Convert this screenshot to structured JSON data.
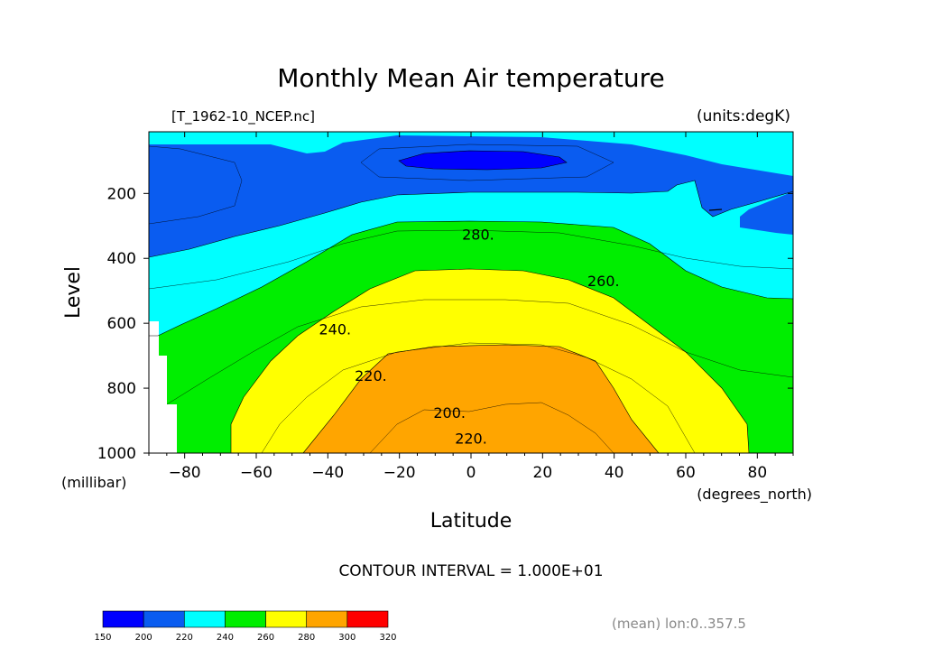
{
  "chart_data": {
    "type": "contour",
    "title": "Monthly Mean Air temperature",
    "dataset_label": "[T_1962-10_NCEP.nc]",
    "units_label": "(units:degK)",
    "xlabel": "Latitude",
    "xunits": "(degrees_north)",
    "ylabel": "Level",
    "yunits": "(millibar)",
    "xlim": [
      -90,
      90
    ],
    "ylim": [
      1000,
      10
    ],
    "y_inverted": true,
    "x_ticks": [
      -80,
      -60,
      -40,
      -20,
      0,
      20,
      40,
      60,
      80
    ],
    "x_tick_labels": [
      "−80",
      "−60",
      "−40",
      "−20",
      "0",
      "20",
      "40",
      "60",
      "80"
    ],
    "y_ticks": [
      1000,
      800,
      600,
      400,
      200
    ],
    "y_tick_labels": [
      "1000",
      "800",
      "600",
      "400",
      "200"
    ],
    "contour_interval_label": "CONTOUR INTERVAL = 1.000E+01",
    "mean_note": "(mean) lon:0..357.5",
    "contour_labels": [
      {
        "text": "220.",
        "x": 0,
        "y": 30
      },
      {
        "text": "200.",
        "x": -6,
        "y": 110
      },
      {
        "text": "220.",
        "x": -28,
        "y": 225
      },
      {
        "text": "240.",
        "x": -38,
        "y": 370
      },
      {
        "text": "260.",
        "x": 37,
        "y": 520
      },
      {
        "text": "280.",
        "x": 2,
        "y": 665
      }
    ],
    "colorbar": {
      "levels": [
        150,
        200,
        220,
        240,
        260,
        280,
        300,
        320
      ],
      "labels": [
        "150",
        "200",
        "220",
        "240",
        "260",
        "280",
        "300",
        "320"
      ],
      "colors": [
        "#0000ff",
        "#0a5cf0",
        "#00ffff",
        "#00ee00",
        "#ffff00",
        "#ffa500",
        "#ff0000"
      ]
    },
    "isotherms": [
      {
        "level": 200,
        "points": [
          [
            -20,
            100
          ],
          [
            -10,
            80
          ],
          [
            0,
            80
          ],
          [
            15,
            85
          ],
          [
            25,
            100
          ],
          [
            15,
            115
          ],
          [
            0,
            118
          ],
          [
            -10,
            115
          ],
          [
            -20,
            100
          ]
        ]
      },
      {
        "level": 220,
        "points": [
          [
            -90,
            20
          ],
          [
            -60,
            22
          ],
          [
            -40,
            23
          ],
          [
            -20,
            25
          ],
          [
            0,
            27
          ],
          [
            20,
            28
          ],
          [
            40,
            27
          ],
          [
            60,
            25
          ],
          [
            80,
            23
          ],
          [
            90,
            22
          ]
        ]
      },
      {
        "level": 220,
        "points": [
          [
            -90,
            305
          ],
          [
            -75,
            280
          ],
          [
            -60,
            255
          ],
          [
            -45,
            230
          ],
          [
            -30,
            210
          ],
          [
            -15,
            198
          ],
          [
            0,
            195
          ],
          [
            20,
            195
          ],
          [
            40,
            198
          ],
          [
            52,
            215
          ],
          [
            55,
            150
          ],
          [
            65,
            80
          ],
          [
            80,
            65
          ],
          [
            90,
            65
          ]
        ]
      },
      {
        "level": 240,
        "points": [
          [
            -90,
            695
          ],
          [
            -86,
            640
          ],
          [
            -75,
            560
          ],
          [
            -60,
            480
          ],
          [
            -45,
            400
          ],
          [
            -35,
            330
          ],
          [
            -20,
            300
          ],
          [
            0,
            290
          ],
          [
            20,
            290
          ],
          [
            40,
            295
          ],
          [
            55,
            340
          ],
          [
            65,
            360
          ],
          [
            80,
            380
          ],
          [
            90,
            380
          ]
        ]
      },
      {
        "level": 260,
        "points": [
          [
            -67,
            1000
          ],
          [
            -67,
            960
          ],
          [
            -60,
            850
          ],
          [
            -50,
            700
          ],
          [
            -40,
            590
          ],
          [
            -25,
            520
          ],
          [
            0,
            495
          ],
          [
            20,
            495
          ],
          [
            35,
            520
          ],
          [
            50,
            580
          ],
          [
            65,
            640
          ],
          [
            80,
            710
          ],
          [
            90,
            710
          ]
        ]
      },
      {
        "level": 280,
        "points": [
          [
            -46,
            1000
          ],
          [
            -35,
            890
          ],
          [
            -25,
            740
          ],
          [
            -20,
            690
          ],
          [
            0,
            670
          ],
          [
            20,
            670
          ],
          [
            30,
            700
          ],
          [
            42,
            800
          ],
          [
            52,
            960
          ],
          [
            57,
            1000
          ]
        ]
      }
    ]
  }
}
